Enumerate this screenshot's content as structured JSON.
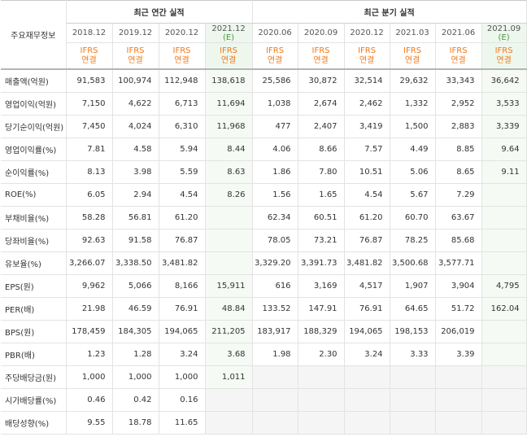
{
  "header": {
    "label": "주요재무정보",
    "annual_group": "최근 연간 실적",
    "quarter_group": "최근 분기 실적",
    "periods": [
      "2018.12",
      "2019.12",
      "2020.12",
      "2021.12",
      "2020.06",
      "2020.09",
      "2020.12",
      "2021.03",
      "2021.06",
      "2021.09"
    ],
    "estimate_mark": "(E)",
    "ifrs_line1": "IFRS",
    "ifrs_line2": "연결"
  },
  "rows": [
    {
      "label": "매출액(억원)",
      "v": [
        "91,583",
        "100,974",
        "112,948",
        "138,618",
        "25,586",
        "30,872",
        "32,514",
        "29,632",
        "33,343",
        "36,642"
      ]
    },
    {
      "label": "영업이익(억원)",
      "v": [
        "7,150",
        "4,622",
        "6,713",
        "11,694",
        "1,038",
        "2,674",
        "2,462",
        "1,332",
        "2,952",
        "3,533"
      ]
    },
    {
      "label": "당기순이익(억원)",
      "v": [
        "7,450",
        "4,024",
        "6,310",
        "11,968",
        "477",
        "2,407",
        "3,419",
        "1,500",
        "2,883",
        "3,339"
      ]
    },
    {
      "label": "영업이익률(%)",
      "v": [
        "7.81",
        "4.58",
        "5.94",
        "8.44",
        "4.06",
        "8.66",
        "7.57",
        "4.49",
        "8.85",
        "9.64"
      ]
    },
    {
      "label": "순이익률(%)",
      "v": [
        "8.13",
        "3.98",
        "5.59",
        "8.63",
        "1.86",
        "7.80",
        "10.51",
        "5.06",
        "8.65",
        "9.11"
      ]
    },
    {
      "label": "ROE(%)",
      "v": [
        "6.05",
        "2.94",
        "4.54",
        "8.26",
        "1.56",
        "1.65",
        "4.54",
        "5.67",
        "7.29",
        ""
      ]
    },
    {
      "label": "부채비율(%)",
      "v": [
        "58.28",
        "56.81",
        "61.20",
        "",
        "62.34",
        "60.51",
        "61.20",
        "60.70",
        "63.67",
        ""
      ]
    },
    {
      "label": "당좌비율(%)",
      "v": [
        "92.63",
        "91.58",
        "76.87",
        "",
        "78.05",
        "73.21",
        "76.87",
        "78.25",
        "85.68",
        ""
      ]
    },
    {
      "label": "유보율(%)",
      "v": [
        "3,266.07",
        "3,338.50",
        "3,481.82",
        "",
        "3,329.20",
        "3,391.73",
        "3,481.82",
        "3,500.68",
        "3,577.71",
        ""
      ]
    },
    {
      "label": "EPS(원)",
      "v": [
        "9,962",
        "5,066",
        "8,166",
        "15,911",
        "616",
        "3,169",
        "4,517",
        "1,907",
        "3,904",
        "4,795"
      ]
    },
    {
      "label": "PER(배)",
      "v": [
        "21.98",
        "46.59",
        "76.91",
        "48.84",
        "133.52",
        "147.91",
        "76.91",
        "64.65",
        "51.72",
        "162.04"
      ]
    },
    {
      "label": "BPS(원)",
      "v": [
        "178,459",
        "184,305",
        "194,065",
        "211,205",
        "183,917",
        "188,329",
        "194,065",
        "198,153",
        "206,019",
        ""
      ]
    },
    {
      "label": "PBR(배)",
      "v": [
        "1.23",
        "1.28",
        "3.24",
        "3.68",
        "1.98",
        "2.30",
        "3.24",
        "3.33",
        "3.39",
        ""
      ]
    },
    {
      "label": "주당배당금(원)",
      "v": [
        "1,000",
        "1,000",
        "1,000",
        "1,011",
        "",
        "",
        "",
        "",
        "",
        ""
      ]
    },
    {
      "label": "시가배당률(%)",
      "v": [
        "0.46",
        "0.42",
        "0.16",
        "",
        "",
        "",
        "",
        "",
        "",
        ""
      ]
    },
    {
      "label": "배당성향(%)",
      "v": [
        "9.55",
        "18.78",
        "11.65",
        "",
        "",
        "",
        "",
        "",
        "",
        ""
      ]
    }
  ]
}
